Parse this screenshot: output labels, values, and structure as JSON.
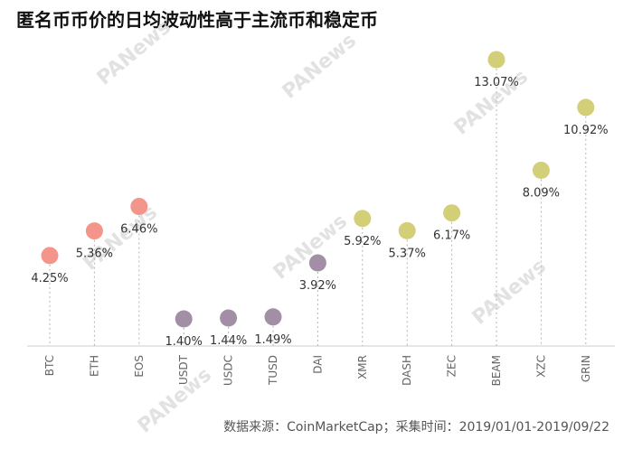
{
  "chart_data": {
    "type": "scatter",
    "title": "匿名币币价的日均波动性高于主流币和稳定币",
    "source": "数据来源：CoinMarketCap；采集时间：2019/01/01-2019/09/22",
    "categories": [
      "BTC",
      "ETH",
      "EOS",
      "USDT",
      "USDC",
      "TUSD",
      "DAI",
      "XMR",
      "DASH",
      "ZEC",
      "BEAM",
      "XZC",
      "GRIN"
    ],
    "values": [
      4.25,
      5.36,
      6.46,
      1.4,
      1.44,
      1.49,
      3.92,
      5.92,
      5.37,
      6.17,
      13.07,
      8.09,
      10.92
    ],
    "labels": [
      "4.25%",
      "5.36%",
      "6.46%",
      "1.40%",
      "1.44%",
      "1.49%",
      "3.92%",
      "5.92%",
      "5.37%",
      "6.17%",
      "13.07%",
      "8.09%",
      "10.92%"
    ],
    "groups": [
      "mainstream",
      "mainstream",
      "mainstream",
      "stable",
      "stable",
      "stable",
      "stable",
      "anon",
      "anon",
      "anon",
      "anon",
      "anon",
      "anon"
    ],
    "group_colors": {
      "mainstream": "#f4958c",
      "stable": "#a28fa6",
      "anon": "#d3cf78"
    },
    "ylim": [
      0,
      14
    ],
    "grid": false,
    "xlabel": "",
    "ylabel": ""
  },
  "watermark": "PANews"
}
